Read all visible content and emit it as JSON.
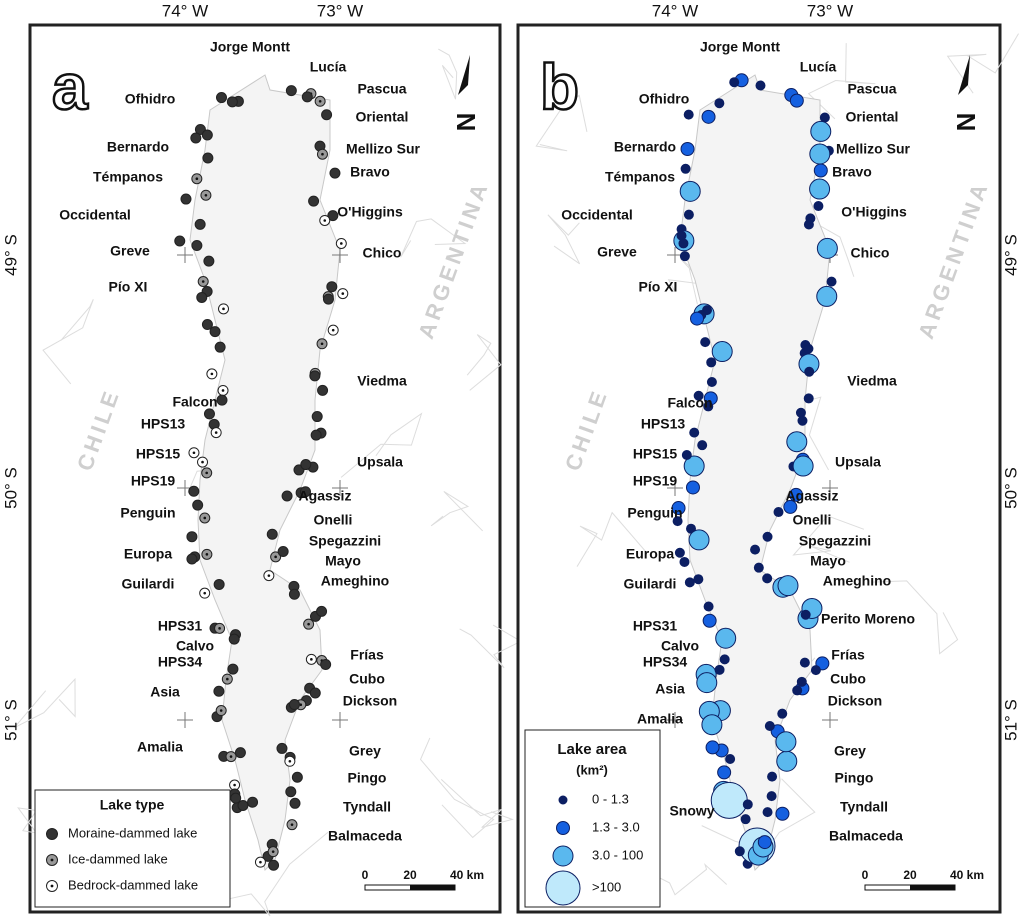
{
  "lon_labels": [
    "74° W",
    "73° W"
  ],
  "lat_labels": [
    "49° S",
    "50° S",
    "51° S"
  ],
  "country_labels": [
    "CHILE",
    "ARGENTINA"
  ],
  "north_label": "N",
  "scale_bar": [
    "0",
    "20",
    "40 km"
  ],
  "panels": [
    {
      "label": "a",
      "glaciers": [
        "Jorge Montt",
        "Lucía",
        "Pascua",
        "Ofhidro",
        "Oriental",
        "Bernardo",
        "Mellizo Sur",
        "Témpanos",
        "Bravo",
        "Occidental",
        "O'Higgins",
        "Greve",
        "Chico",
        "Pío XI",
        "Viedma",
        "Falcon",
        "HPS13",
        "HPS15",
        "Upsala",
        "HPS19",
        "Agassiz",
        "Penguin",
        "Onelli",
        "Spegazzini",
        "Europa",
        "Mayo",
        "Ameghino",
        "Guilardi",
        "HPS31",
        "Calvo",
        "Frías",
        "HPS34",
        "Cubo",
        "Asia",
        "Dickson",
        "Amalia",
        "Grey",
        "Pingo",
        "Tyndall",
        "Balmaceda"
      ],
      "legend": {
        "title": "Lake type",
        "items": [
          "Moraine-dammed lake",
          "Ice-dammed lake",
          "Bedrock-dammed lake"
        ]
      }
    },
    {
      "label": "b",
      "glaciers": [
        "Jorge Montt",
        "Lucía",
        "Pascua",
        "Ofhidro",
        "Oriental",
        "Bernardo",
        "Mellizo Sur",
        "Témpanos",
        "Bravo",
        "Occidental",
        "O'Higgins",
        "Greve",
        "Chico",
        "Pío XI",
        "Viedma",
        "Falcon",
        "HPS13",
        "HPS15",
        "Upsala",
        "HPS19",
        "Agassiz",
        "Penguin",
        "Onelli",
        "Spegazzini",
        "Europa",
        "Mayo",
        "Ameghino",
        "Guilardi",
        "Perito Moreno",
        "HPS31",
        "Calvo",
        "Frías",
        "HPS34",
        "Cubo",
        "Asia",
        "Dickson",
        "Amalia",
        "Grey",
        "Pingo",
        "Tyndall",
        "Snowy",
        "Balmaceda"
      ],
      "legend": {
        "title": "Lake area",
        "subtitle": "(km²)",
        "items": [
          "0 - 1.3",
          "1.3 - 3.0",
          "3.0 - 100",
          ">100"
        ]
      }
    }
  ]
}
